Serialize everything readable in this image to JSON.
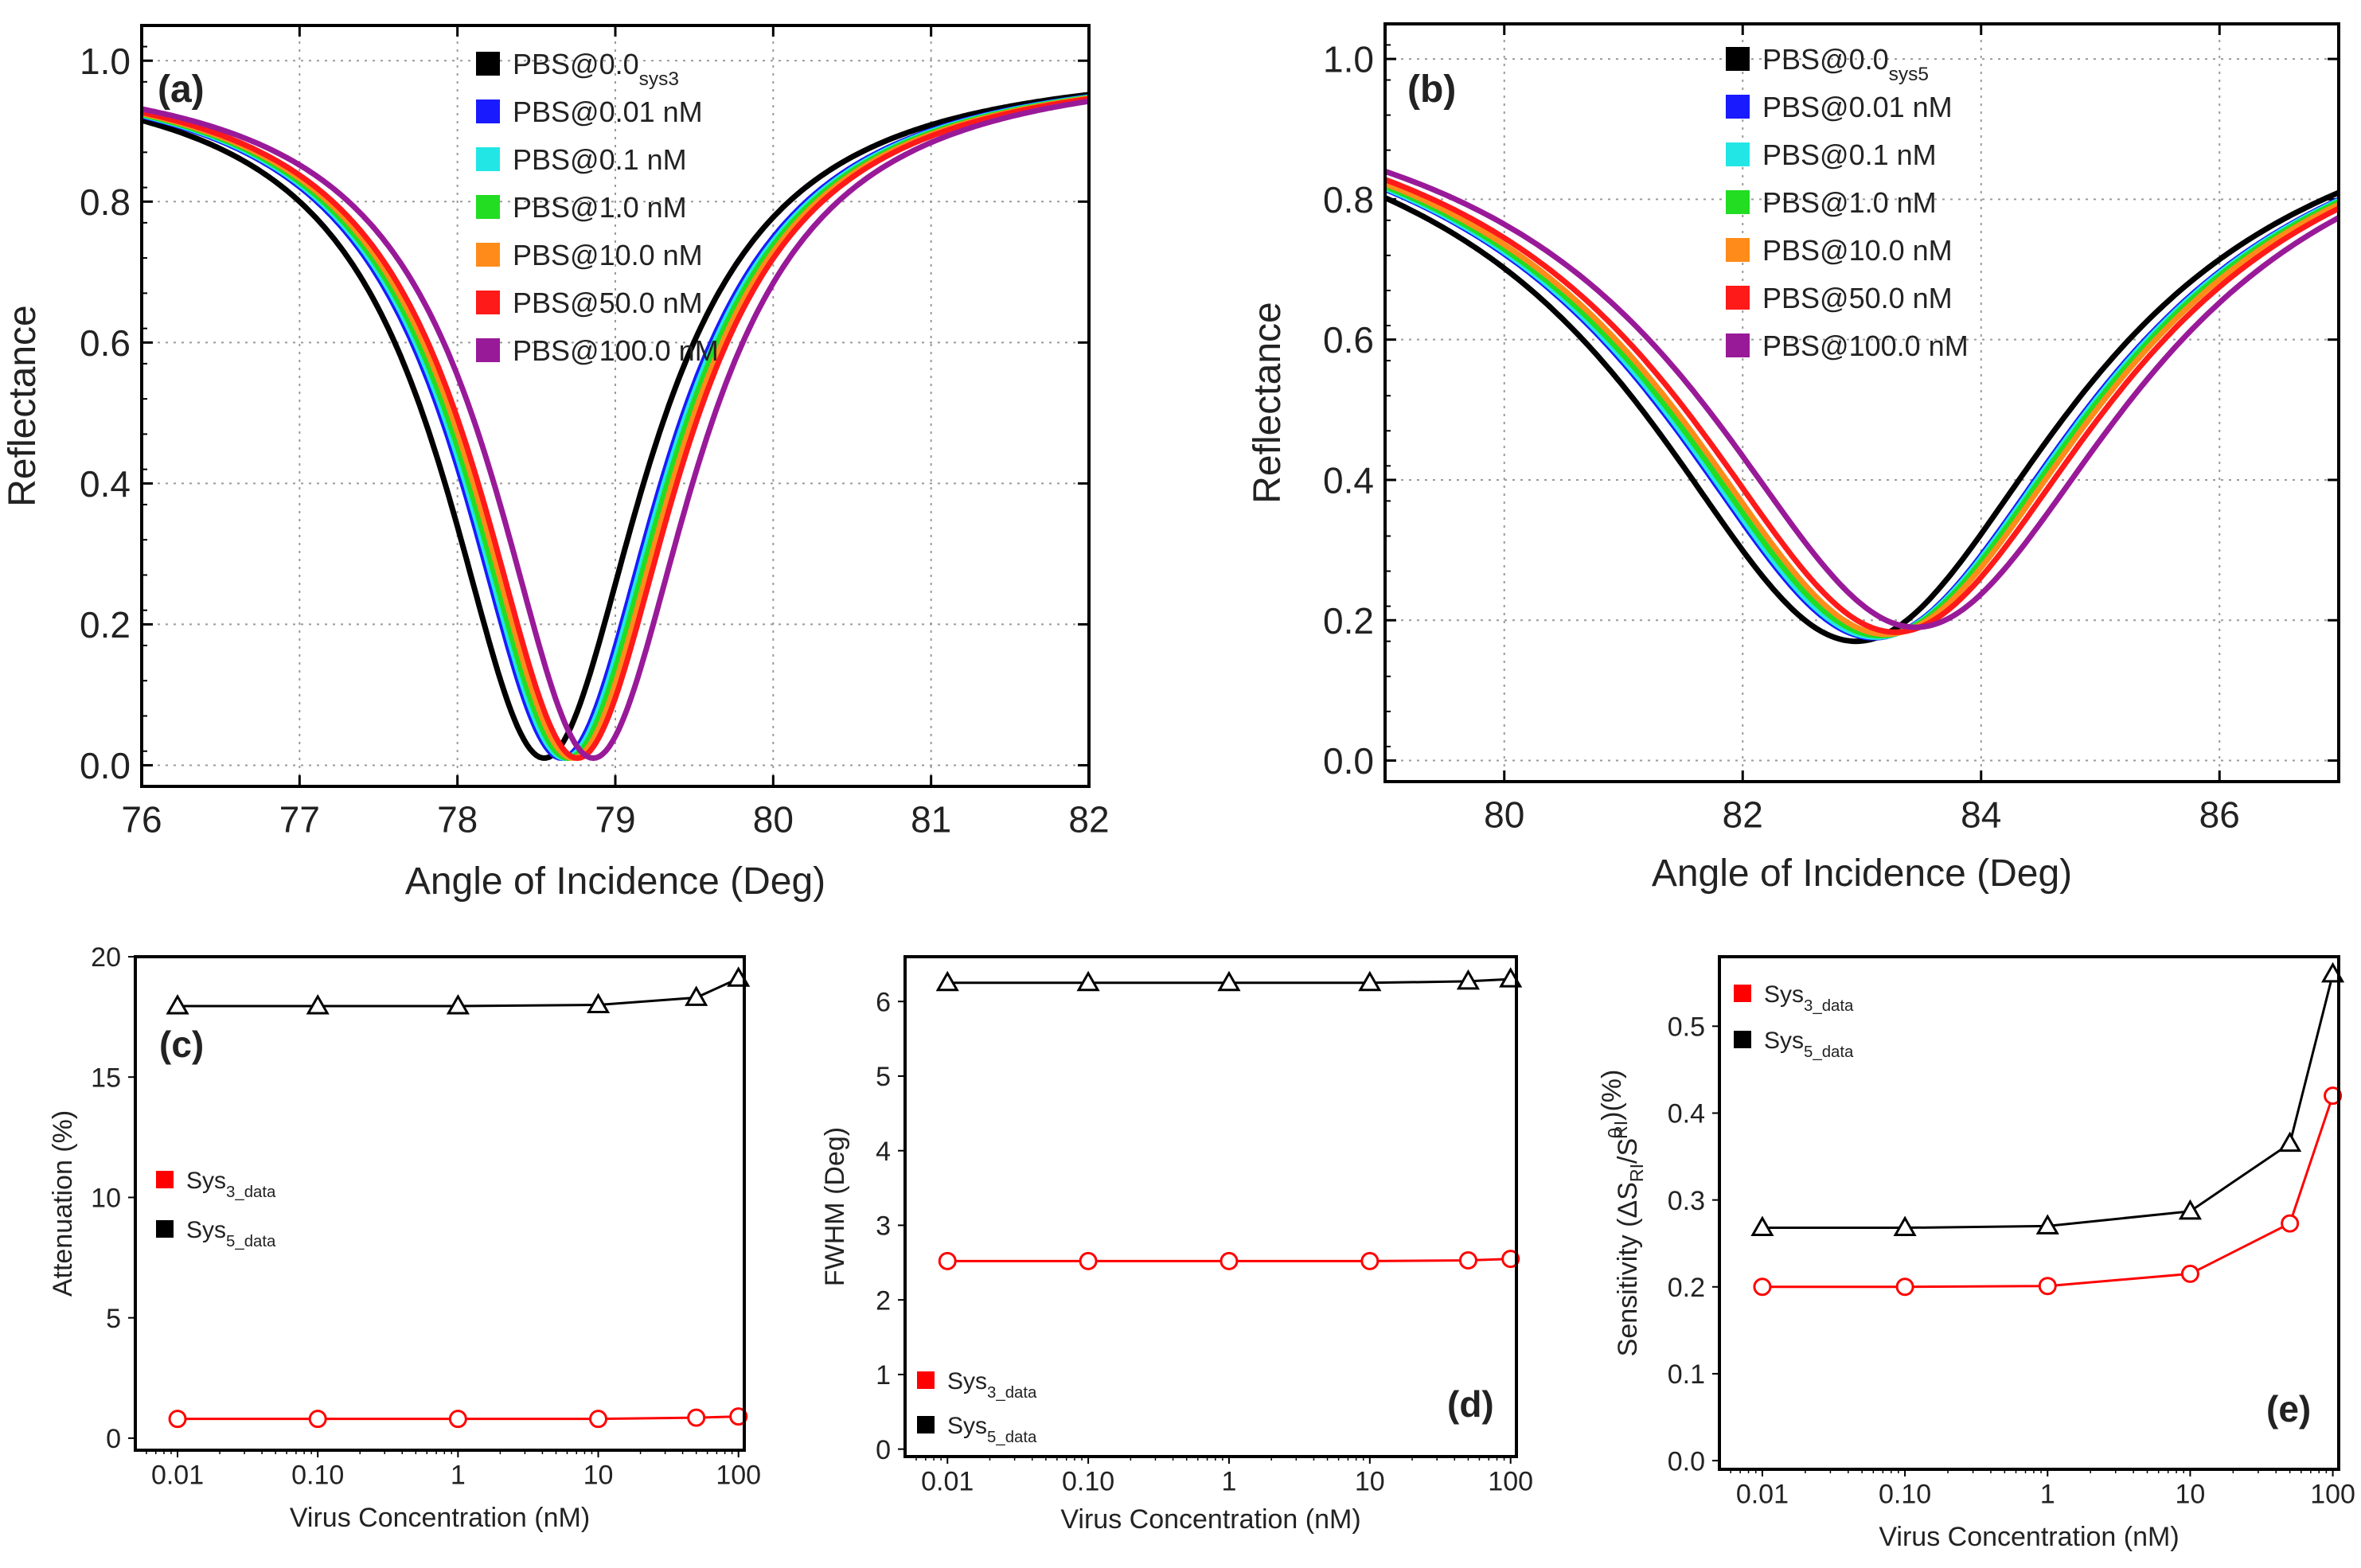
{
  "chart_data": [
    {
      "id": "a",
      "type": "line",
      "panel_label": "(a)",
      "xlabel": "Angle of Incidence (Deg)",
      "ylabel": "Reflectance",
      "xlim": [
        76,
        82
      ],
      "ylim": [
        -0.03,
        1.05
      ],
      "xticks": [
        "76",
        "77",
        "78",
        "79",
        "80",
        "81",
        "82"
      ],
      "yticks": [
        "0.0",
        "0.2",
        "0.4",
        "0.6",
        "0.8",
        "1.0"
      ],
      "grid": true,
      "legend_position": "top-center",
      "curve_model": "lorentzian dip: R(x) = 1 - depth*w^2/((x-center)^2 + w^2)",
      "series": [
        {
          "name": "PBS@0.0",
          "name_sub": "sys3",
          "color": "#000000",
          "center": 78.55,
          "rmin": 0.01,
          "width": 0.78
        },
        {
          "name": "PBS@0.01 nM",
          "color": "#1a1aff",
          "center": 78.66,
          "rmin": 0.01,
          "width": 0.78
        },
        {
          "name": "PBS@0.1 nM",
          "color": "#22e6e6",
          "center": 78.68,
          "rmin": 0.01,
          "width": 0.78
        },
        {
          "name": "PBS@1.0 nM",
          "color": "#22dd22",
          "center": 78.7,
          "rmin": 0.01,
          "width": 0.78
        },
        {
          "name": "PBS@10.0 nM",
          "color": "#ff8c1a",
          "center": 78.73,
          "rmin": 0.01,
          "width": 0.78
        },
        {
          "name": "PBS@50.0 nM",
          "color": "#ff1a1a",
          "center": 78.76,
          "rmin": 0.01,
          "width": 0.78
        },
        {
          "name": "PBS@100.0 nM",
          "color": "#991a99",
          "center": 78.86,
          "rmin": 0.01,
          "width": 0.78
        }
      ]
    },
    {
      "id": "b",
      "type": "line",
      "panel_label": "(b)",
      "xlabel": "Angle of Incidence (Deg)",
      "ylabel": "Reflectance",
      "xlim": [
        79,
        87
      ],
      "ylim": [
        -0.03,
        1.05
      ],
      "xticks": [
        "80",
        "82",
        "84",
        "86"
      ],
      "yticks": [
        "0.0",
        "0.2",
        "0.4",
        "0.6",
        "0.8",
        "1.0"
      ],
      "grid": true,
      "legend_position": "top-center",
      "curve_model": "lorentzian dip: R(x) = 1 - depth*w^2/((x-center)^2 + w^2)",
      "series": [
        {
          "name": "PBS@0.0",
          "name_sub": "sys5",
          "color": "#000000",
          "center": 82.95,
          "rmin": 0.17,
          "width": 2.21
        },
        {
          "name": "PBS@0.01 nM",
          "color": "#1a1aff",
          "center": 83.1,
          "rmin": 0.175,
          "width": 2.21
        },
        {
          "name": "PBS@0.1 nM",
          "color": "#22e6e6",
          "center": 83.12,
          "rmin": 0.176,
          "width": 2.21
        },
        {
          "name": "PBS@1.0 nM",
          "color": "#22dd22",
          "center": 83.15,
          "rmin": 0.178,
          "width": 2.21
        },
        {
          "name": "PBS@10.0 nM",
          "color": "#ff8c1a",
          "center": 83.2,
          "rmin": 0.18,
          "width": 2.21
        },
        {
          "name": "PBS@50.0 nM",
          "color": "#ff1a1a",
          "center": 83.28,
          "rmin": 0.183,
          "width": 2.21
        },
        {
          "name": "PBS@100.0 nM",
          "color": "#991a99",
          "center": 83.45,
          "rmin": 0.19,
          "width": 2.21
        }
      ]
    },
    {
      "id": "c",
      "type": "line",
      "panel_label": "(c)",
      "xlabel": "Virus Concentration (nM)",
      "ylabel": "Attenuation (%)",
      "xscale": "log",
      "xlim": [
        0.005,
        110
      ],
      "ylim": [
        -0.5,
        20
      ],
      "xticks": [
        {
          "value": 0.01,
          "label": "0.01"
        },
        {
          "value": 0.1,
          "label": "0.10"
        },
        {
          "value": 1,
          "label": "1"
        },
        {
          "value": 10,
          "label": "10"
        },
        {
          "value": 100,
          "label": "100"
        }
      ],
      "yticks": [
        {
          "value": 0,
          "label": "0"
        },
        {
          "value": 5,
          "label": "5"
        },
        {
          "value": 10,
          "label": "10"
        },
        {
          "value": 15,
          "label": "15"
        },
        {
          "value": 20,
          "label": "20"
        }
      ],
      "grid": false,
      "legend_position": "middle-left",
      "x": [
        0.01,
        0.1,
        1,
        10,
        50,
        100
      ],
      "series": [
        {
          "name": "Sys",
          "name_sub": "3_data",
          "color": "#ff0000",
          "marker": "circle",
          "values": [
            0.8,
            0.8,
            0.8,
            0.8,
            0.85,
            0.9
          ]
        },
        {
          "name": "Sys",
          "name_sub": "5_data",
          "color": "#000000",
          "marker": "triangle",
          "values": [
            17.95,
            17.95,
            17.95,
            18.0,
            18.3,
            19.1
          ]
        }
      ]
    },
    {
      "id": "d",
      "type": "line",
      "panel_label": "(d)",
      "xlabel": "Virus Concentration (nM)",
      "ylabel": "FWHM (Deg)",
      "xscale": "log",
      "xlim": [
        0.005,
        110
      ],
      "ylim": [
        -0.1,
        6.6
      ],
      "xticks": [
        {
          "value": 0.01,
          "label": "0.01"
        },
        {
          "value": 0.1,
          "label": "0.10"
        },
        {
          "value": 1,
          "label": "1"
        },
        {
          "value": 10,
          "label": "10"
        },
        {
          "value": 100,
          "label": "100"
        }
      ],
      "yticks": [
        {
          "value": 0,
          "label": "0"
        },
        {
          "value": 1,
          "label": "1"
        },
        {
          "value": 2,
          "label": "2"
        },
        {
          "value": 3,
          "label": "3"
        },
        {
          "value": 4,
          "label": "4"
        },
        {
          "value": 5,
          "label": "5"
        },
        {
          "value": 6,
          "label": "6"
        }
      ],
      "grid": false,
      "legend_position": "bottom-left",
      "x": [
        0.01,
        0.1,
        1,
        10,
        50,
        100
      ],
      "series": [
        {
          "name": "Sys",
          "name_sub": "3_data",
          "color": "#ff0000",
          "marker": "circle",
          "values": [
            2.52,
            2.52,
            2.52,
            2.52,
            2.53,
            2.55
          ]
        },
        {
          "name": "Sys",
          "name_sub": "5_data",
          "color": "#000000",
          "marker": "triangle",
          "values": [
            6.25,
            6.25,
            6.25,
            6.25,
            6.27,
            6.3
          ]
        }
      ]
    },
    {
      "id": "e",
      "type": "line",
      "panel_label": "(e)",
      "xlabel": "Virus Concentration (nM)",
      "ylabel": "Sensitivity (ΔS_RI/S^0_RI)(%)",
      "ylabel_parts": {
        "pre": "Sensitivity (ΔS",
        "sub1": "RI",
        "mid": "/S",
        "sup": "0",
        "sub2": "RI",
        "post": ")(%)"
      },
      "xscale": "log",
      "xlim": [
        0.005,
        110
      ],
      "ylim": [
        -0.01,
        0.58
      ],
      "xticks": [
        {
          "value": 0.01,
          "label": "0.01"
        },
        {
          "value": 0.1,
          "label": "0.10"
        },
        {
          "value": 1,
          "label": "1"
        },
        {
          "value": 10,
          "label": "10"
        },
        {
          "value": 100,
          "label": "100"
        }
      ],
      "yticks": [
        {
          "value": 0,
          "label": "0.0"
        },
        {
          "value": 0.1,
          "label": "0.1"
        },
        {
          "value": 0.2,
          "label": "0.2"
        },
        {
          "value": 0.3,
          "label": "0.3"
        },
        {
          "value": 0.4,
          "label": "0.4"
        },
        {
          "value": 0.5,
          "label": "0.5"
        }
      ],
      "grid": false,
      "legend_position": "top-left",
      "x": [
        0.01,
        0.1,
        1,
        10,
        50,
        100
      ],
      "series": [
        {
          "name": "Sys",
          "name_sub": "3_data",
          "color": "#ff0000",
          "marker": "circle",
          "values": [
            0.2,
            0.2,
            0.201,
            0.215,
            0.273,
            0.42
          ]
        },
        {
          "name": "Sys",
          "name_sub": "5_data",
          "color": "#000000",
          "marker": "triangle",
          "values": [
            0.268,
            0.268,
            0.27,
            0.287,
            0.365,
            0.56
          ]
        }
      ]
    }
  ]
}
